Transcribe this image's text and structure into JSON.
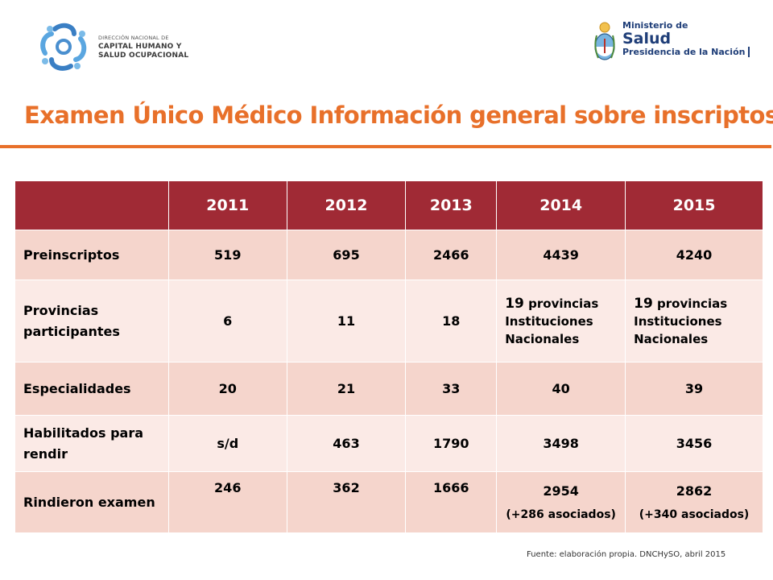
{
  "header": {
    "left_logo": {
      "line1": "DIRECCIÓN NACIONAL DE",
      "line2": "CAPITAL HUMANO Y",
      "line3": "SALUD OCUPACIONAL"
    },
    "right_logo": {
      "line1": "Ministerio de",
      "line2": "Salud",
      "line3": "Presidencia de la Nación"
    }
  },
  "title": "Examen Único Médico Información general sobre inscriptos",
  "table": {
    "years": [
      "2011",
      "2012",
      "2013",
      "2014",
      "2015"
    ],
    "rows": [
      {
        "label": "Preinscriptos",
        "values": [
          "519",
          "695",
          "2466",
          "4439",
          "4240"
        ]
      },
      {
        "label": "Provincias participantes",
        "values": [
          "6",
          "11",
          "18"
        ],
        "y2014": {
          "num": "19",
          "prov": "provincias",
          "line2": "Instituciones",
          "line3": "Nacionales"
        },
        "y2015": {
          "num": "19",
          "prov": "provincias",
          "line2": "Instituciones",
          "line3": "Nacionales"
        }
      },
      {
        "label": "Especialidades",
        "values": [
          "20",
          "21",
          "33",
          "40",
          "39"
        ]
      },
      {
        "label": "Habilitados para rendir",
        "values": [
          "s/d",
          "463",
          "1790",
          "3498",
          "3456"
        ]
      },
      {
        "label": "Rindieron examen",
        "values": [
          "246",
          "362",
          "1666"
        ],
        "y2014": {
          "main": "2954",
          "note": "(+286 asociados)"
        },
        "y2015": {
          "main": "2862",
          "note": "(+340 asociados)"
        }
      }
    ]
  },
  "source": "Fuente: elaboración propia. DNCHySO, abril 2015",
  "colors": {
    "title": "#e8702a",
    "header_bg": "#a02a35",
    "row_odd": "#f5d5cc",
    "row_even": "#fbeae6",
    "logo_blue": "#1f3e78"
  }
}
